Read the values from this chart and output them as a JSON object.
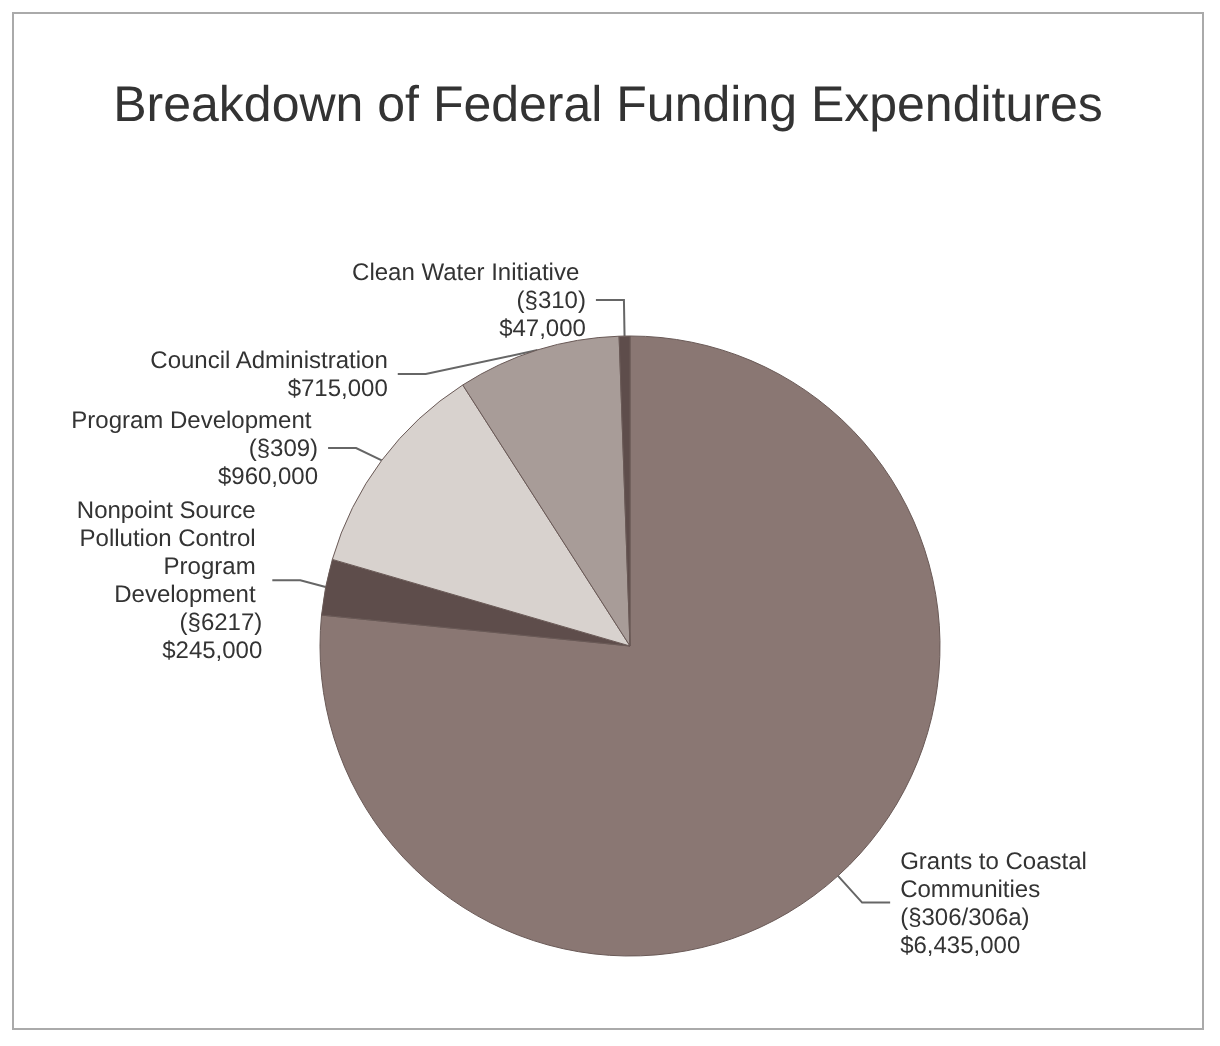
{
  "chart_data": {
    "type": "pie",
    "title": "Breakdown of Federal Funding Expenditures",
    "categories": [
      "Grants to Coastal Communities (§306/306a)",
      "Nonpoint Source Pollution Control Program Development (§6217)",
      "Program Development (§309)",
      "Council Administration",
      "Clean Water Initiative (§310)"
    ],
    "values": [
      6435000,
      245000,
      960000,
      715000,
      47000
    ],
    "value_labels": [
      "$6,435,000",
      "$245,000",
      "$960,000",
      "$715,000",
      "$47,000"
    ],
    "colors": [
      "#8a7773",
      "#5e4d4b",
      "#d8d2ce",
      "#a89c98",
      "#5e4d4b"
    ]
  }
}
